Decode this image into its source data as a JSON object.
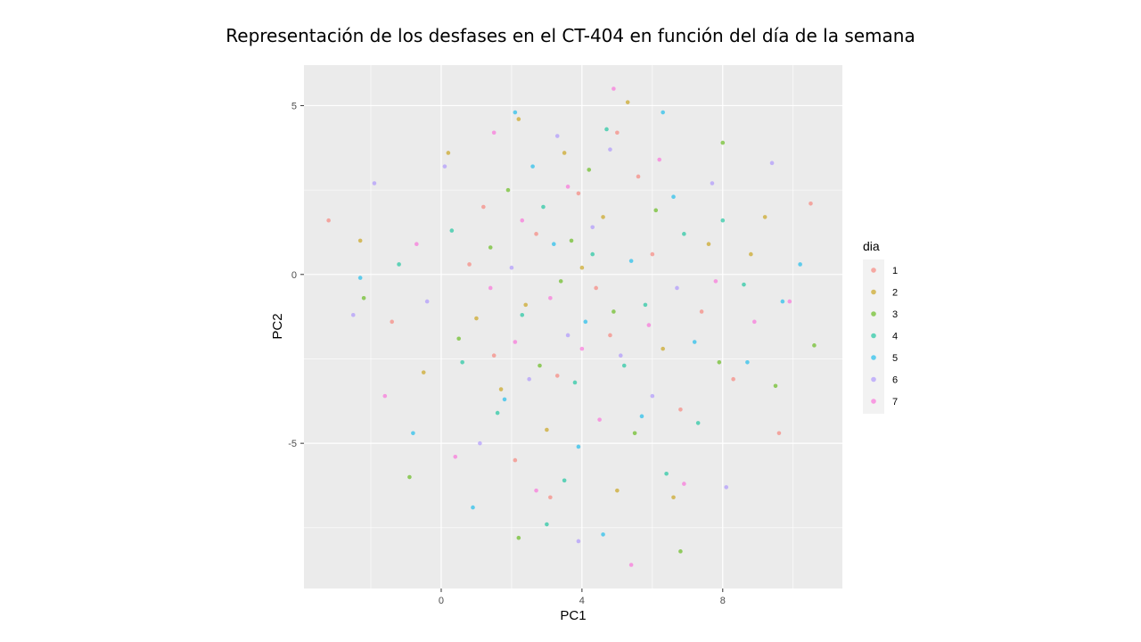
{
  "chart_data": {
    "type": "scatter",
    "title": "Representación de los desfases en el CT-404 en función del día de la semana",
    "xlabel": "PC1",
    "ylabel": "PC2",
    "xlim": [
      -3.9,
      11.4
    ],
    "ylim": [
      -9.3,
      6.2
    ],
    "x_ticks": [
      0,
      4,
      8
    ],
    "y_ticks": [
      -5,
      0,
      5
    ],
    "x_tick_labels": [
      "0",
      "4",
      "8"
    ],
    "y_tick_labels": [
      "-5",
      "0",
      "5"
    ],
    "grid": true,
    "legend": {
      "title": "dia",
      "position": "right",
      "entries": [
        "1",
        "2",
        "3",
        "4",
        "5",
        "6",
        "7"
      ]
    },
    "series": [
      {
        "name": "1",
        "color": "#F8766D",
        "points": [
          [
            -3.2,
            1.6
          ],
          [
            10.5,
            2.1
          ],
          [
            5.0,
            4.2
          ],
          [
            3.3,
            -3.0
          ],
          [
            2.7,
            1.2
          ],
          [
            4.8,
            -1.8
          ],
          [
            6.0,
            0.6
          ],
          [
            1.5,
            -2.4
          ],
          [
            3.9,
            2.4
          ],
          [
            7.4,
            -1.1
          ],
          [
            0.8,
            0.3
          ],
          [
            2.1,
            -5.5
          ],
          [
            4.4,
            -0.4
          ],
          [
            5.6,
            2.9
          ],
          [
            8.3,
            -3.1
          ],
          [
            3.1,
            -6.6
          ],
          [
            1.2,
            2.0
          ],
          [
            6.8,
            -4.0
          ],
          [
            9.6,
            -4.7
          ],
          [
            -1.4,
            -1.4
          ]
        ]
      },
      {
        "name": "2",
        "color": "#C49A00",
        "points": [
          [
            -2.3,
            1.0
          ],
          [
            5.3,
            5.1
          ],
          [
            3.5,
            3.6
          ],
          [
            2.4,
            -0.9
          ],
          [
            4.6,
            1.7
          ],
          [
            6.3,
            -2.2
          ],
          [
            1.0,
            -1.3
          ],
          [
            7.6,
            0.9
          ],
          [
            0.2,
            3.6
          ],
          [
            3.0,
            -4.6
          ],
          [
            8.8,
            0.6
          ],
          [
            5.0,
            -6.4
          ],
          [
            2.2,
            4.6
          ],
          [
            6.6,
            -6.6
          ],
          [
            4.0,
            0.2
          ],
          [
            1.7,
            -3.4
          ],
          [
            9.2,
            1.7
          ],
          [
            -0.5,
            -2.9
          ]
        ]
      },
      {
        "name": "3",
        "color": "#53B400",
        "points": [
          [
            10.6,
            -2.1
          ],
          [
            8.0,
            3.9
          ],
          [
            2.2,
            -7.8
          ],
          [
            3.7,
            1.0
          ],
          [
            4.9,
            -1.1
          ],
          [
            1.4,
            0.8
          ],
          [
            6.1,
            1.9
          ],
          [
            2.8,
            -2.7
          ],
          [
            -0.9,
            -6.0
          ],
          [
            6.8,
            -8.2
          ],
          [
            4.2,
            3.1
          ],
          [
            0.5,
            -1.9
          ],
          [
            7.9,
            -2.6
          ],
          [
            3.4,
            -0.2
          ],
          [
            5.5,
            -4.7
          ],
          [
            1.9,
            2.5
          ],
          [
            9.5,
            -3.3
          ],
          [
            -2.2,
            -0.7
          ]
        ]
      },
      {
        "name": "4",
        "color": "#00C094",
        "points": [
          [
            3.5,
            -6.1
          ],
          [
            0.6,
            -2.6
          ],
          [
            4.3,
            0.6
          ],
          [
            2.9,
            2.0
          ],
          [
            5.8,
            -0.9
          ],
          [
            6.9,
            1.2
          ],
          [
            1.6,
            -4.1
          ],
          [
            3.8,
            -3.2
          ],
          [
            7.3,
            -4.4
          ],
          [
            4.7,
            4.3
          ],
          [
            0.3,
            1.3
          ],
          [
            8.6,
            -0.3
          ],
          [
            2.3,
            -1.2
          ],
          [
            5.2,
            -2.7
          ],
          [
            -1.2,
            0.3
          ],
          [
            6.4,
            -5.9
          ],
          [
            3.0,
            -7.4
          ],
          [
            8.0,
            1.6
          ]
        ]
      },
      {
        "name": "5",
        "color": "#00B6EB",
        "points": [
          [
            10.2,
            0.3
          ],
          [
            2.1,
            4.8
          ],
          [
            6.3,
            4.8
          ],
          [
            4.1,
            -1.4
          ],
          [
            1.8,
            -3.7
          ],
          [
            3.2,
            0.9
          ],
          [
            5.4,
            0.4
          ],
          [
            7.2,
            -2.0
          ],
          [
            4.6,
            -7.7
          ],
          [
            0.9,
            -6.9
          ],
          [
            2.6,
            3.2
          ],
          [
            8.7,
            -2.6
          ],
          [
            -2.3,
            -0.1
          ],
          [
            5.7,
            -4.2
          ],
          [
            3.9,
            -5.1
          ],
          [
            6.6,
            2.3
          ],
          [
            -0.8,
            -4.7
          ],
          [
            9.7,
            -0.8
          ]
        ]
      },
      {
        "name": "6",
        "color": "#A58AFF",
        "points": [
          [
            -2.5,
            -1.2
          ],
          [
            3.9,
            -7.9
          ],
          [
            4.3,
            1.4
          ],
          [
            2.0,
            0.2
          ],
          [
            5.1,
            -2.4
          ],
          [
            6.7,
            -0.4
          ],
          [
            1.1,
            -5.0
          ],
          [
            3.6,
            -1.8
          ],
          [
            7.7,
            2.7
          ],
          [
            0.1,
            3.2
          ],
          [
            8.1,
            -6.3
          ],
          [
            4.8,
            3.7
          ],
          [
            -1.9,
            2.7
          ],
          [
            2.5,
            -3.1
          ],
          [
            6.0,
            -3.6
          ],
          [
            9.4,
            3.3
          ],
          [
            -0.4,
            -0.8
          ],
          [
            3.3,
            4.1
          ]
        ]
      },
      {
        "name": "7",
        "color": "#FB61D7",
        "points": [
          [
            4.9,
            5.5
          ],
          [
            5.4,
            -8.6
          ],
          [
            3.1,
            -0.7
          ],
          [
            4.0,
            -2.2
          ],
          [
            2.3,
            1.6
          ],
          [
            5.9,
            -1.5
          ],
          [
            1.4,
            -0.4
          ],
          [
            6.2,
            3.4
          ],
          [
            3.6,
            2.6
          ],
          [
            0.4,
            -5.4
          ],
          [
            7.8,
            -0.2
          ],
          [
            2.7,
            -6.4
          ],
          [
            4.5,
            -4.3
          ],
          [
            1.5,
            4.2
          ],
          [
            8.9,
            -1.4
          ],
          [
            -1.6,
            -3.6
          ],
          [
            9.9,
            -0.8
          ],
          [
            6.9,
            -6.2
          ],
          [
            2.1,
            -2.0
          ],
          [
            -0.7,
            0.9
          ]
        ]
      }
    ]
  }
}
